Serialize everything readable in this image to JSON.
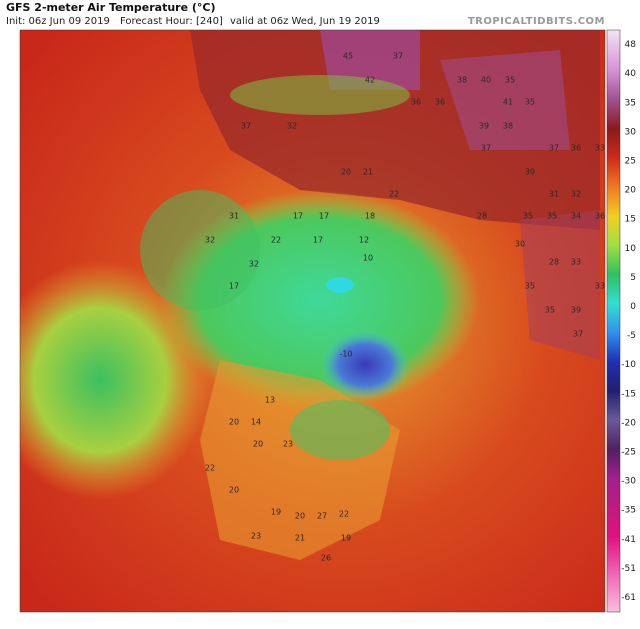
{
  "header": {
    "title": "GFS 2-meter Air Temperature (°C)",
    "init": "Init: 06z Jun 09 2019",
    "forecast_hour": "Forecast Hour: [240]",
    "valid": "valid at 06z Wed, Jun 19 2019",
    "source": "TROPICALTIDBITS.COM"
  },
  "colorbar": {
    "ticks": [
      48,
      40,
      35,
      30,
      25,
      20,
      15,
      10,
      5,
      0,
      -5,
      -10,
      -15,
      -20,
      -25,
      -30,
      -35,
      -41,
      -51,
      -61
    ]
  },
  "map_labels": [
    45,
    37,
    42,
    38,
    40,
    35,
    36,
    41,
    35,
    39,
    38,
    36,
    37,
    37,
    36,
    33,
    39,
    31,
    32,
    35,
    34,
    36,
    35,
    28,
    33,
    35,
    35,
    39,
    33,
    37,
    37,
    32,
    21,
    20,
    22,
    28,
    17,
    18,
    17,
    12,
    17,
    22,
    32,
    31,
    32,
    17,
    10,
    -10,
    13,
    20,
    14,
    23,
    20,
    22,
    20,
    19,
    20,
    23,
    21,
    27,
    22,
    19,
    26,
    30
  ]
}
